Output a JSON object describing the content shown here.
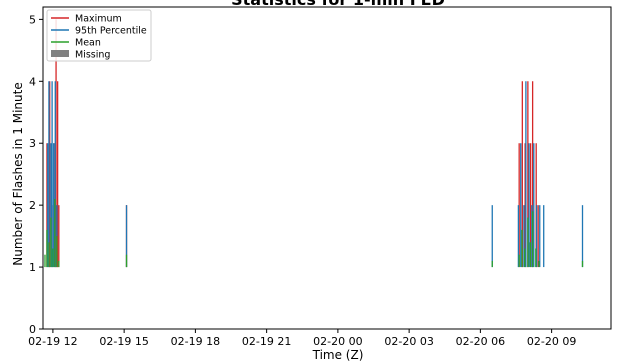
{
  "chart_data": {
    "type": "line",
    "title": "Statistics for 1-min FED",
    "xlabel": "Time (Z)",
    "ylabel": "Number of Flashes in 1 Minute",
    "ylim": [
      0,
      5.2
    ],
    "xlim": [
      "2019-02-19 11:35",
      "2019-02-20 11:30"
    ],
    "x_tick_labels": [
      "02-19 12",
      "02-19 15",
      "02-19 18",
      "02-19 21",
      "02-20 00",
      "02-20 03",
      "02-20 06",
      "02-20 09"
    ],
    "y_tick_labels": [
      "0",
      "1",
      "2",
      "3",
      "4",
      "5"
    ],
    "grid": false,
    "legend": {
      "placement": "top-left"
    },
    "series": [
      {
        "name": "Maximum",
        "color": "#d62728",
        "values": [
          [
            "2019-02-19 11:38",
            1
          ],
          [
            "2019-02-19 11:45",
            3
          ],
          [
            "2019-02-19 11:52",
            4
          ],
          [
            "2019-02-19 11:58",
            2
          ],
          [
            "2019-02-19 12:03",
            3
          ],
          [
            "2019-02-19 12:08",
            5
          ],
          [
            "2019-02-19 12:12",
            4
          ],
          [
            "2019-02-19 12:15",
            2
          ],
          [
            "2019-02-19 12:20",
            1
          ],
          [
            "2019-02-19 15:06",
            2
          ],
          [
            "2019-02-20 07:38",
            3
          ],
          [
            "2019-02-20 07:46",
            4
          ],
          [
            "2019-02-20 07:53",
            3
          ],
          [
            "2019-02-20 08:00",
            4
          ],
          [
            "2019-02-20 08:07",
            3
          ],
          [
            "2019-02-20 08:12",
            4
          ],
          [
            "2019-02-20 08:21",
            3
          ],
          [
            "2019-02-20 08:26",
            2
          ]
        ]
      },
      {
        "name": "95th Percentile",
        "color": "#1f77b4",
        "values": [
          [
            "2019-02-19 11:40",
            1
          ],
          [
            "2019-02-19 11:47",
            3
          ],
          [
            "2019-02-19 11:50",
            4
          ],
          [
            "2019-02-19 11:55",
            3
          ],
          [
            "2019-02-19 11:58",
            4
          ],
          [
            "2019-02-19 12:02",
            3
          ],
          [
            "2019-02-19 12:06",
            4
          ],
          [
            "2019-02-19 12:10",
            2
          ],
          [
            "2019-02-19 15:06",
            2
          ],
          [
            "2019-02-20 06:30",
            2
          ],
          [
            "2019-02-20 07:36",
            2
          ],
          [
            "2019-02-20 07:42",
            3
          ],
          [
            "2019-02-20 07:50",
            2
          ],
          [
            "2019-02-20 07:55",
            4
          ],
          [
            "2019-02-20 08:03",
            3
          ],
          [
            "2019-02-20 08:10",
            2
          ],
          [
            "2019-02-20 08:15",
            3
          ],
          [
            "2019-02-20 08:22",
            2
          ],
          [
            "2019-02-20 08:30",
            2
          ],
          [
            "2019-02-20 08:40",
            2
          ],
          [
            "2019-02-20 10:18",
            2
          ]
        ]
      },
      {
        "name": "Mean",
        "color": "#2ca02c",
        "values": [
          [
            "2019-02-19 11:40",
            1.2
          ],
          [
            "2019-02-19 11:45",
            1.6
          ],
          [
            "2019-02-19 11:50",
            1.4
          ],
          [
            "2019-02-19 11:55",
            1.8
          ],
          [
            "2019-02-19 12:00",
            1.3
          ],
          [
            "2019-02-19 12:05",
            2.1
          ],
          [
            "2019-02-19 12:10",
            1.5
          ],
          [
            "2019-02-19 12:15",
            1.1
          ],
          [
            "2019-02-19 15:06",
            1.2
          ],
          [
            "2019-02-20 06:30",
            1.1
          ],
          [
            "2019-02-20 07:38",
            1.2
          ],
          [
            "2019-02-20 07:45",
            1.6
          ],
          [
            "2019-02-20 07:52",
            1.3
          ],
          [
            "2019-02-20 08:00",
            1.8
          ],
          [
            "2019-02-20 08:06",
            1.4
          ],
          [
            "2019-02-20 08:12",
            1.9
          ],
          [
            "2019-02-20 08:20",
            1.3
          ],
          [
            "2019-02-20 08:28",
            1.1
          ],
          [
            "2019-02-20 10:18",
            1.1
          ]
        ]
      },
      {
        "name": "Missing",
        "color": "#808080",
        "values": []
      }
    ]
  }
}
